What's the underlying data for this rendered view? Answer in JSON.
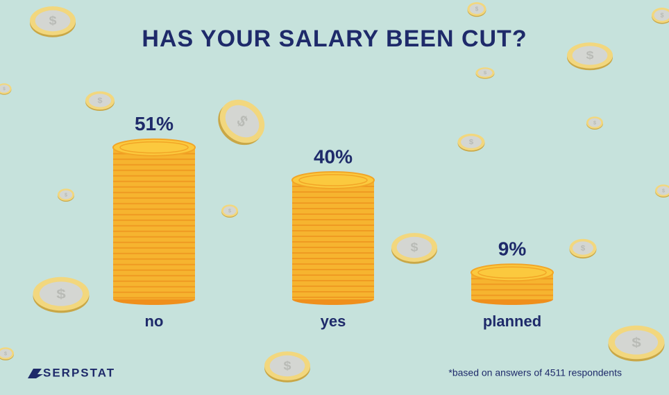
{
  "chart_data": {
    "type": "bar",
    "title": "HAS YOUR SALARY BEEN CUT?",
    "categories": [
      "no",
      "yes",
      "planned"
    ],
    "values": [
      51,
      40,
      9
    ],
    "value_labels": [
      "51%",
      "40%",
      "9%"
    ],
    "color": "#f6b42f",
    "footnote": "*based on answers of 4511 respondents",
    "brand": "SERPSTAT"
  }
}
